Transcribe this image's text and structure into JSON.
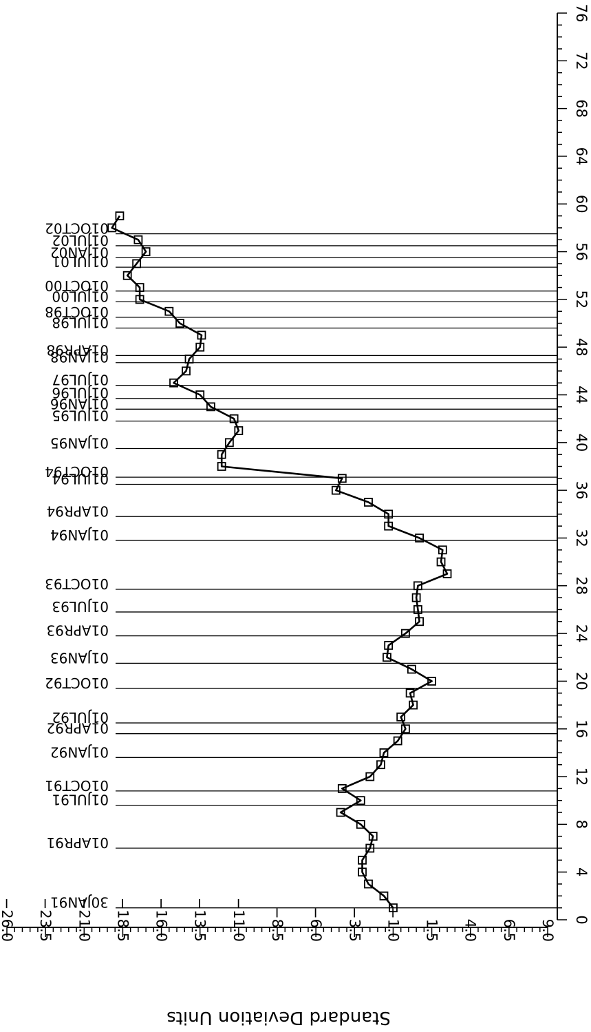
{
  "chart_data": {
    "type": "line",
    "orientation": "rotated-90",
    "xlabel": "",
    "ylabel": "Standard Deviation Units",
    "x_axis": {
      "ticks": [
        0,
        4,
        8,
        12,
        16,
        20,
        24,
        28,
        32,
        36,
        40,
        44,
        48,
        52,
        56,
        60,
        64,
        68,
        72,
        76
      ],
      "minor_step": 1,
      "range": [
        0,
        76
      ]
    },
    "y_axis": {
      "ticks": [
        -26.0,
        -23.5,
        -21.0,
        -18.5,
        -16.0,
        -13.5,
        -11.0,
        -8.5,
        -6.0,
        -3.5,
        -1.0,
        1.5,
        4.0,
        6.5,
        9.0
      ],
      "tick_labels": [
        "−26.0",
        "−23.5",
        "−21.0",
        "−18.5",
        "−16.0",
        "−13.5",
        "−11.0",
        "−8.5",
        "−6.0",
        "−3.5",
        "−1.0",
        "1.5",
        "4.0",
        "6.5",
        "9.0"
      ],
      "minor_step": 0.5,
      "range": [
        -26,
        9
      ]
    },
    "series": [
      {
        "marker": "square",
        "points": [
          [
            1,
            -1.0
          ],
          [
            2,
            -1.6
          ],
          [
            3,
            -2.6
          ],
          [
            4,
            -3.0
          ],
          [
            5,
            -3.0
          ],
          [
            6,
            -2.5
          ],
          [
            7,
            -2.3
          ],
          [
            8,
            -3.1
          ],
          [
            9,
            -4.4
          ],
          [
            10,
            -3.1
          ],
          [
            11,
            -4.3
          ],
          [
            12,
            -2.5
          ],
          [
            13,
            -1.8
          ],
          [
            14,
            -1.6
          ],
          [
            15,
            -0.7
          ],
          [
            16,
            -0.2
          ],
          [
            17,
            -0.5
          ],
          [
            18,
            0.3
          ],
          [
            19,
            0.1
          ],
          [
            20,
            1.5
          ],
          [
            21,
            0.2
          ],
          [
            22,
            -1.4
          ],
          [
            23,
            -1.3
          ],
          [
            24,
            -0.2
          ],
          [
            25,
            0.7
          ],
          [
            26,
            0.6
          ],
          [
            27,
            0.5
          ],
          [
            28,
            0.6
          ],
          [
            29,
            2.5
          ],
          [
            30,
            2.1
          ],
          [
            31,
            2.2
          ],
          [
            32,
            0.7
          ],
          [
            33,
            -1.3
          ],
          [
            34,
            -1.3
          ],
          [
            35,
            -2.6
          ],
          [
            36,
            -4.7
          ],
          [
            37,
            -4.3
          ],
          [
            38,
            -12.1
          ],
          [
            39,
            -12.1
          ],
          [
            40,
            -11.6
          ],
          [
            41,
            -11.0
          ],
          [
            42,
            -11.3
          ],
          [
            43,
            -12.8
          ],
          [
            44,
            -13.5
          ],
          [
            45,
            -15.2
          ],
          [
            46,
            -14.4
          ],
          [
            47,
            -14.2
          ],
          [
            48,
            -13.5
          ],
          [
            49,
            -13.4
          ],
          [
            50,
            -14.8
          ],
          [
            51,
            -15.5
          ],
          [
            52,
            -17.4
          ],
          [
            53,
            -17.4
          ],
          [
            54,
            -18.2
          ],
          [
            55,
            -17.6
          ],
          [
            56,
            -17.0
          ],
          [
            57,
            -17.5
          ],
          [
            58,
            -19.2
          ],
          [
            59,
            -18.7
          ]
        ]
      }
    ],
    "reference_lines": [
      {
        "x": 1.0,
        "label": "30JAN91"
      },
      {
        "x": 6.0,
        "label": "01APR91"
      },
      {
        "x": 9.6,
        "label": "01JUL91"
      },
      {
        "x": 10.8,
        "label": "01OCT91"
      },
      {
        "x": 13.6,
        "label": "01JAN92"
      },
      {
        "x": 15.6,
        "label": "01APR92"
      },
      {
        "x": 16.5,
        "label": "01JUL92"
      },
      {
        "x": 19.4,
        "label": "01OCT92"
      },
      {
        "x": 21.5,
        "label": "01JAN93"
      },
      {
        "x": 23.8,
        "label": "01APR93"
      },
      {
        "x": 25.8,
        "label": "01JUL93"
      },
      {
        "x": 27.7,
        "label": "01OCT93"
      },
      {
        "x": 31.8,
        "label": "01JAN94"
      },
      {
        "x": 33.8,
        "label": "01APR94"
      },
      {
        "x": 36.5,
        "label": "01JUL94"
      },
      {
        "x": 37.1,
        "label": "01OCT94"
      },
      {
        "x": 39.5,
        "label": "01JAN95"
      },
      {
        "x": 41.8,
        "label": "01JUL95"
      },
      {
        "x": 42.8,
        "label": "01JAN96"
      },
      {
        "x": 43.7,
        "label": "01JUL96"
      },
      {
        "x": 44.8,
        "label": "01JUL97"
      },
      {
        "x": 46.7,
        "label": "01JAN98"
      },
      {
        "x": 47.3,
        "label": "01APR98"
      },
      {
        "x": 49.6,
        "label": "01JUL98"
      },
      {
        "x": 50.5,
        "label": "01OCT98"
      },
      {
        "x": 51.8,
        "label": "01JUL00"
      },
      {
        "x": 52.7,
        "label": "01OCT00"
      },
      {
        "x": 54.7,
        "label": "01JUL01"
      },
      {
        "x": 55.5,
        "label": "01JAN02"
      },
      {
        "x": 56.5,
        "label": "01JUL02"
      },
      {
        "x": 57.5,
        "label": "01OCT02"
      }
    ]
  }
}
